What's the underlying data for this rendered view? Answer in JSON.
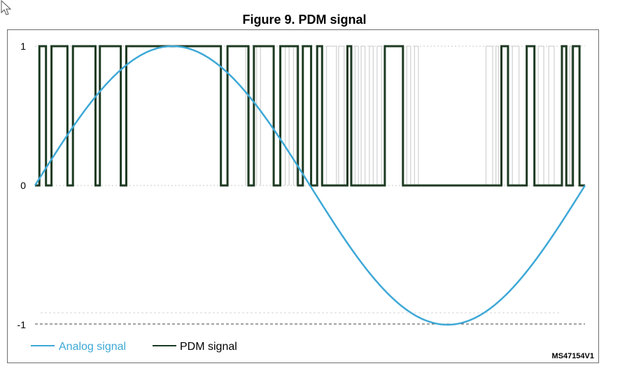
{
  "figure": {
    "title": "Figure 9. PDM signal",
    "ref_id": "MS47154V1"
  },
  "colors": {
    "analog": "#3da8d6",
    "pdm": "#1d3a22",
    "ghost": "#d0d0d0",
    "grid": "#9a9a9a",
    "frame": "#6e6e6e"
  },
  "chart_data": {
    "type": "line",
    "title": "Figure 9. PDM signal",
    "xlabel": "",
    "ylabel": "",
    "ylim": [
      -1,
      1
    ],
    "y_ticks": [
      "1",
      "0",
      "-1"
    ],
    "y_tick_values": [
      1,
      0,
      -1
    ],
    "legend_position": "bottom-left",
    "series": [
      {
        "name": "Analog signal",
        "kind": "sine",
        "amplitude": 1,
        "periods": 1,
        "phase_start": 0
      },
      {
        "name": "PDM signal",
        "kind": "pulse",
        "levels": [
          0,
          1
        ],
        "high_intervals": [
          [
            0.008,
            0.02
          ],
          [
            0.03,
            0.059
          ],
          [
            0.069,
            0.11
          ],
          [
            0.118,
            0.156
          ],
          [
            0.166,
            0.338
          ],
          [
            0.35,
            0.388
          ],
          [
            0.398,
            0.434
          ],
          [
            0.446,
            0.478
          ],
          [
            0.487,
            0.502
          ],
          [
            0.513,
            0.522
          ],
          [
            0.568,
            0.575
          ],
          [
            0.636,
            0.669
          ],
          [
            0.848,
            0.86
          ],
          [
            0.894,
            0.908
          ],
          [
            0.958,
            0.966
          ],
          [
            0.978,
            0.99
          ]
        ],
        "ghost_high_intervals": [
          [
            0.383,
            0.39
          ],
          [
            0.403,
            0.41
          ],
          [
            0.455,
            0.462
          ],
          [
            0.47,
            0.475
          ],
          [
            0.53,
            0.548
          ],
          [
            0.552,
            0.562
          ],
          [
            0.582,
            0.588
          ],
          [
            0.593,
            0.6
          ],
          [
            0.608,
            0.615
          ],
          [
            0.622,
            0.63
          ],
          [
            0.676,
            0.683
          ],
          [
            0.69,
            0.697
          ],
          [
            0.82,
            0.832
          ],
          [
            0.838,
            0.843
          ],
          [
            0.868,
            0.88
          ],
          [
            0.915,
            0.925
          ],
          [
            0.934,
            0.944
          ],
          [
            0.972,
            0.975
          ]
        ]
      }
    ]
  }
}
